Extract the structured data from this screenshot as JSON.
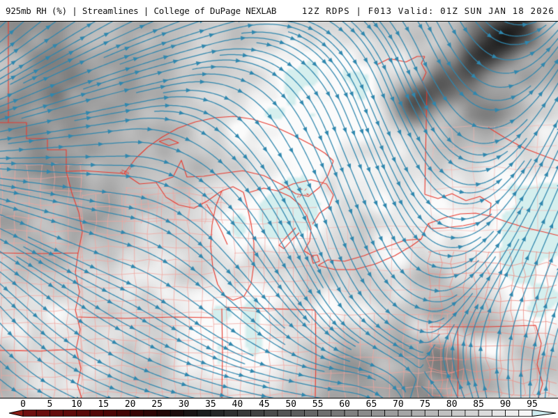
{
  "header": {
    "left": "925mb RH (%) | Streamlines | College of DuPage NEXLAB",
    "right": "12Z RDPS | F013 Valid: 01Z SUN JAN 18 2026"
  },
  "map": {
    "streamline_color": "#2f87ae",
    "state_border_color": "#e8392e",
    "county_border_color": "#f2a49e",
    "county_border_color_dense": "#ee8d84",
    "county_border_color_faint": "#f4b4ae",
    "high_rh_tint": "#d5efee"
  },
  "colorbar": {
    "min": 0,
    "max": 95,
    "cell_step": 2.5,
    "ticks": [
      0,
      5,
      10,
      15,
      20,
      25,
      30,
      35,
      40,
      45,
      50,
      55,
      60,
      65,
      70,
      75,
      80,
      85,
      90,
      95
    ],
    "stops": [
      [
        0,
        "#701010"
      ],
      [
        12.5,
        "#570808"
      ],
      [
        20,
        "#3f0404"
      ],
      [
        27.5,
        "#1e0808"
      ],
      [
        32.5,
        "#181818"
      ],
      [
        95,
        "#fbfbfb"
      ]
    ],
    "left_arrow_color": "#8c1d15",
    "right_arrow_color": "#cdeaee",
    "border_color": "#000000"
  }
}
